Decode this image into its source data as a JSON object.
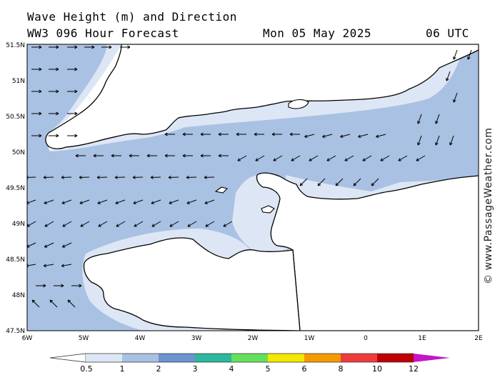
{
  "header": {
    "title": "Wave Height (m) and Direction",
    "model": "WW3 096 Hour Forecast",
    "date": "Mon 05 May 2025",
    "time": "06 UTC"
  },
  "credit": "© www.PassageWeather.com",
  "axes": {
    "lat_labels": [
      "51.5N",
      "51N",
      "50.5N",
      "50N",
      "49.5N",
      "49N",
      "48.5N",
      "48N",
      "47.5N"
    ],
    "lon_labels": [
      "6W",
      "5W",
      "4W",
      "3W",
      "2W",
      "1W",
      "0",
      "1E",
      "2E"
    ]
  },
  "legend": {
    "levels": [
      "0.5",
      "1",
      "2",
      "3",
      "4",
      "5",
      "6",
      "8",
      "10",
      "12"
    ],
    "colors": [
      "#dde6f4",
      "#a9c1e3",
      "#6b93d0",
      "#2bb89c",
      "#66e05c",
      "#f2e800",
      "#f59a00",
      "#ee3b3b",
      "#c00000",
      "#c416c8"
    ]
  }
}
